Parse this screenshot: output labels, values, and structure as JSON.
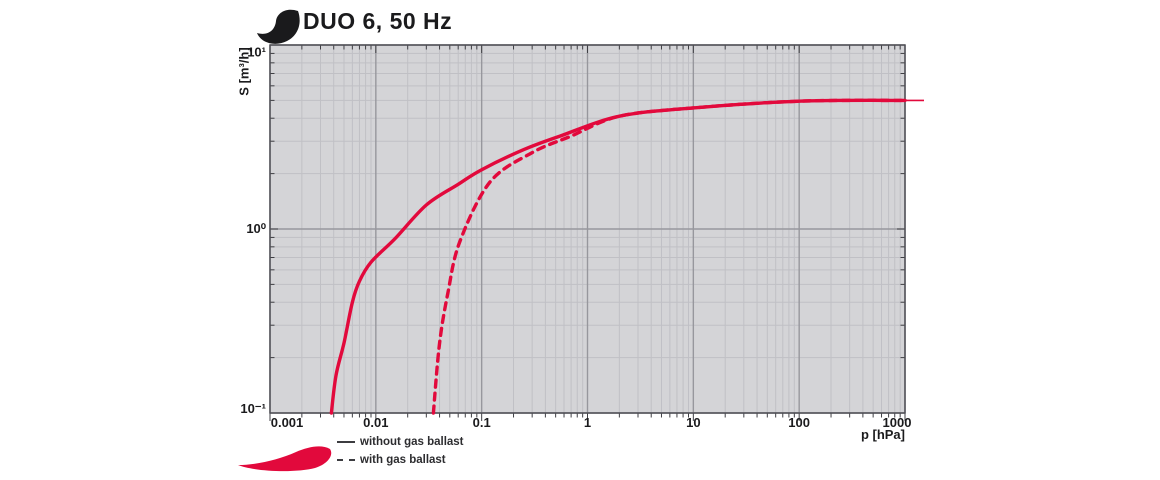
{
  "title": "DUO 6, 50 Hz",
  "colors": {
    "curve": "#e2093c",
    "plot_bg": "#d4d4d7",
    "grid_minor": "#c0c0c5",
    "grid_major": "#97979d",
    "frame": "#4f4f55",
    "tick": "#3f3f44",
    "text": "#1b1b1d",
    "flourish_title": "#1a1a1c",
    "flourish_legend": "#e2093c"
  },
  "axes": {
    "x": {
      "label": "p [hPa]",
      "scale": "log",
      "min": 0.001,
      "max": 1000,
      "tick_values": [
        0.001,
        0.01,
        0.1,
        1,
        10,
        100,
        1000
      ],
      "tick_labels": [
        "0.001",
        "0.01",
        "0.1",
        "1",
        "10",
        "100",
        "1000"
      ]
    },
    "y": {
      "label": "S [m³/h]",
      "scale": "log",
      "min": 0.1,
      "max": 10,
      "tick_values": [
        0.1,
        1,
        10
      ],
      "tick_labels": [
        "10⁻¹",
        "10⁰",
        "10¹"
      ]
    }
  },
  "legend": [
    {
      "label": "without gas ballast",
      "style": "solid"
    },
    {
      "label": "with gas ballast",
      "style": "dashed"
    }
  ],
  "chart_data": {
    "type": "line",
    "title": "DUO 6, 50 Hz",
    "xlabel": "p [hPa]",
    "ylabel": "S [m³/h]",
    "xscale": "log",
    "yscale": "log",
    "xlim": [
      0.001,
      1000
    ],
    "ylim": [
      0.1,
      10
    ],
    "grid": true,
    "legend_position": "bottom-left",
    "series": [
      {
        "name": "without gas ballast",
        "style": "solid",
        "points": [
          [
            0.0038,
            0.1
          ],
          [
            0.0042,
            0.16
          ],
          [
            0.005,
            0.24
          ],
          [
            0.006,
            0.4
          ],
          [
            0.007,
            0.52
          ],
          [
            0.009,
            0.66
          ],
          [
            0.015,
            0.88
          ],
          [
            0.03,
            1.35
          ],
          [
            0.06,
            1.75
          ],
          [
            0.1,
            2.1
          ],
          [
            0.25,
            2.7
          ],
          [
            0.55,
            3.2
          ],
          [
            2,
            4.1
          ],
          [
            10,
            4.55
          ],
          [
            100,
            4.95
          ],
          [
            1000,
            5.0
          ]
        ]
      },
      {
        "name": "with gas ballast",
        "style": "dashed",
        "points": [
          [
            0.035,
            0.1
          ],
          [
            0.04,
            0.24
          ],
          [
            0.048,
            0.45
          ],
          [
            0.062,
            0.85
          ],
          [
            0.12,
            1.8
          ],
          [
            0.3,
            2.6
          ],
          [
            0.7,
            3.2
          ],
          [
            2,
            4.1
          ],
          [
            10,
            4.55
          ],
          [
            100,
            4.95
          ],
          [
            1000,
            5.0
          ]
        ]
      }
    ]
  }
}
